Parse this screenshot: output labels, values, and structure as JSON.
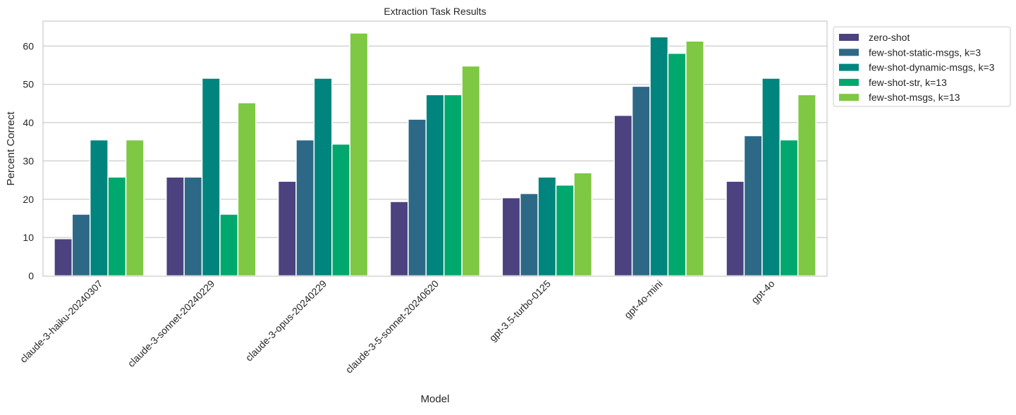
{
  "chart_data": {
    "type": "bar",
    "title": "Extraction Task Results",
    "xlabel": "Model",
    "ylabel": "Percent Correct",
    "ylim": [
      0,
      66.5
    ],
    "yticks": [
      0,
      10,
      20,
      30,
      40,
      50,
      60
    ],
    "grid": true,
    "legend_position": "outside-top-right",
    "categories": [
      "claude-3-haiku-20240307",
      "claude-3-sonnet-20240229",
      "claude-3-opus-20240229",
      "claude-3-5-sonnet-20240620",
      "gpt-3.5-turbo-0125",
      "gpt-4o-mini",
      "gpt-4o"
    ],
    "series": [
      {
        "name": "zero-shot",
        "color": "#4c4280",
        "values": [
          9.7,
          25.8,
          24.7,
          19.4,
          20.4,
          41.9,
          24.7
        ]
      },
      {
        "name": "few-shot-static-msgs, k=3",
        "color": "#2e6887",
        "values": [
          16.1,
          25.8,
          35.5,
          40.9,
          21.5,
          49.5,
          36.6
        ]
      },
      {
        "name": "few-shot-dynamic-msgs, k=3",
        "color": "#00847e",
        "values": [
          35.5,
          51.6,
          51.6,
          47.3,
          25.8,
          62.4,
          51.6
        ]
      },
      {
        "name": "few-shot-str, k=13",
        "color": "#00a86e",
        "values": [
          25.8,
          16.1,
          34.4,
          47.3,
          23.7,
          58.1,
          35.5
        ]
      },
      {
        "name": "few-shot-msgs, k=13",
        "color": "#7ec843",
        "values": [
          35.5,
          45.2,
          63.4,
          54.8,
          26.9,
          61.3,
          47.3
        ]
      }
    ]
  }
}
